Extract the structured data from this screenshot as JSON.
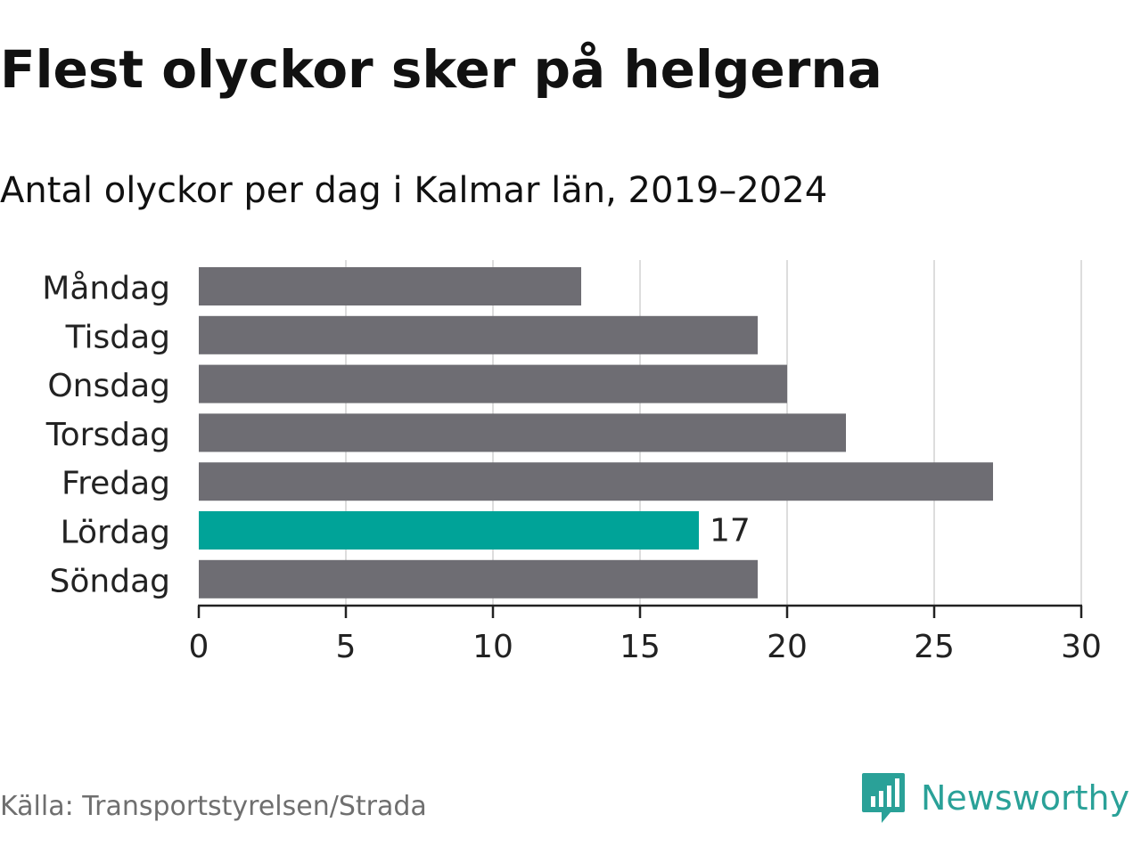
{
  "header": {
    "title": "Flest olyckor sker på helgerna",
    "subtitle": "Antal olyckor per dag i Kalmar län, 2019–2024"
  },
  "footer": {
    "source": "Källa: Transportstyrelsen/Strada",
    "brand_name": "Newsworthy"
  },
  "colors": {
    "bar_default": "#6e6d73",
    "bar_highlight": "#00a398",
    "grid": "#dddddd",
    "axis": "#222222",
    "tick_text": "#222222",
    "brand": "#2aa198"
  },
  "icons": {
    "brand_logo": "newsworthy-logo-icon"
  },
  "chart_data": {
    "type": "bar",
    "orientation": "horizontal",
    "categories": [
      "Måndag",
      "Tisdag",
      "Onsdag",
      "Torsdag",
      "Fredag",
      "Lördag",
      "Söndag"
    ],
    "values": [
      13,
      19,
      20,
      22,
      27,
      17,
      19
    ],
    "highlight_category": "Lördag",
    "data_labels": [
      {
        "category": "Lördag",
        "label": "17"
      }
    ],
    "xlim": [
      0,
      30
    ],
    "xticks": [
      0,
      5,
      10,
      15,
      20,
      25,
      30
    ],
    "xlabel": "",
    "ylabel": "",
    "grid": true,
    "legend": false
  }
}
